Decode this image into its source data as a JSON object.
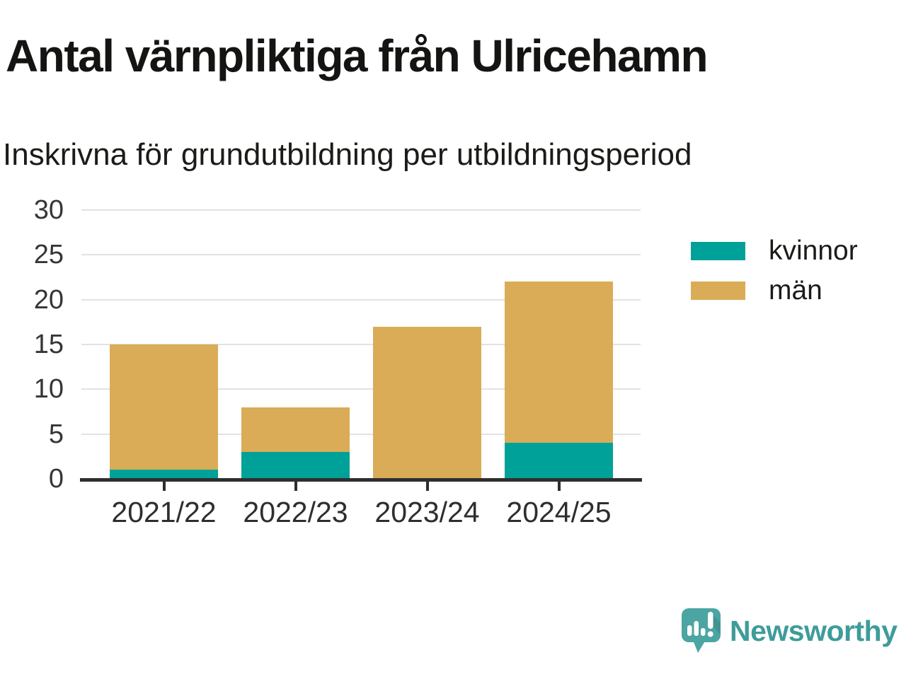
{
  "title": "Antal värnpliktiga från Ulricehamn",
  "subtitle": "Inskrivna för grundutbildning per utbildningsperiod",
  "chart_data": {
    "type": "bar",
    "stacked": true,
    "title": "Antal värnpliktiga från Ulricehamn",
    "subtitle": "Inskrivna för grundutbildning per utbildningsperiod",
    "categories": [
      "2021/22",
      "2022/23",
      "2023/24",
      "2024/25"
    ],
    "series": [
      {
        "name": "kvinnor",
        "color": "#00A198",
        "values": [
          1,
          3,
          0,
          4
        ]
      },
      {
        "name": "män",
        "color": "#DAAC58",
        "values": [
          14,
          5,
          17,
          18
        ]
      }
    ],
    "totals": [
      15,
      8,
      17,
      22
    ],
    "xlabel": "",
    "ylabel": "",
    "ylim": [
      0,
      30
    ],
    "yticks": [
      0,
      5,
      10,
      15,
      20,
      25,
      30
    ],
    "grid": true,
    "legend_position": "right"
  },
  "branding": {
    "logo_text": "Newsworthy",
    "logo_text_color": "#3E9C9A",
    "logo_icon_color": "#4BA5A2",
    "logo_icon_shade_color": "#37817F",
    "logo_icon_name": "newsworthy-speech-bubble-chart-icon"
  },
  "colors": {
    "axis": "#2E2E2E",
    "gridline": "#E2E2E2",
    "title_text": "#141412",
    "tick_label": "#363636"
  }
}
